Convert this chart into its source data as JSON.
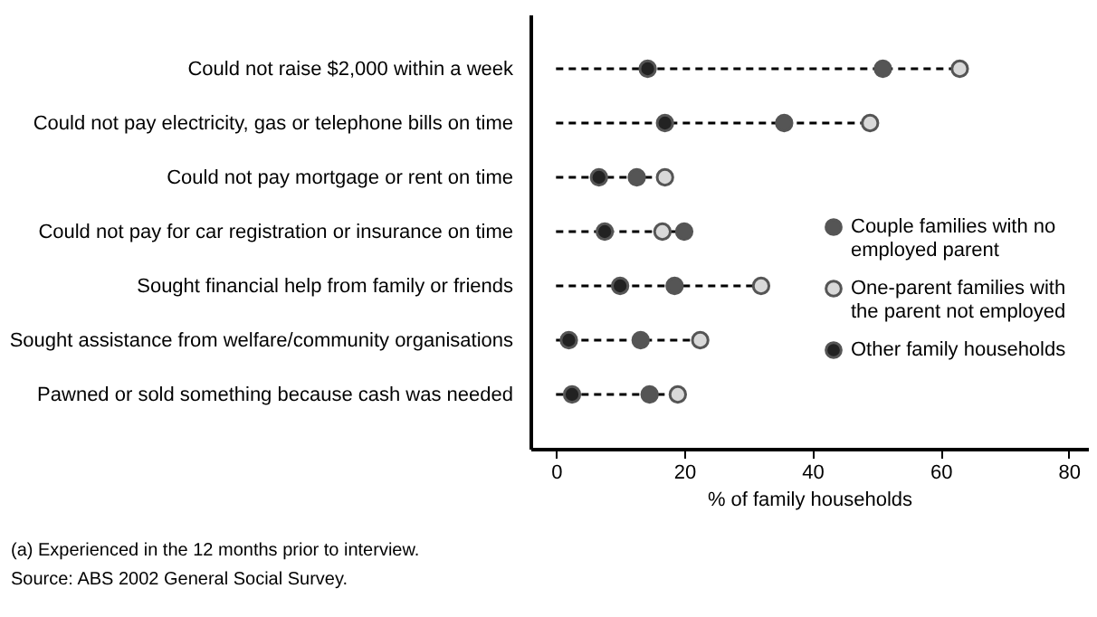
{
  "chart_data": {
    "type": "scatter",
    "xlabel": "% of family households",
    "categories": [
      "Could not raise $2,000 within a week",
      "Could not pay electricity, gas or telephone bills on time",
      "Could not pay mortgage or rent on time",
      "Could not pay for car registration or insurance on time",
      "Sought financial help from family or friends",
      "Sought assistance from welfare/community organisations",
      "Pawned or sold something because cash was needed"
    ],
    "series": [
      {
        "name": "Couple families with no employed parent",
        "color": "#555555",
        "values": [
          51,
          35.6,
          12.6,
          20,
          18.5,
          13.2,
          14.6
        ]
      },
      {
        "name": "One-parent families with the parent not employed",
        "color": "#d9d9d9",
        "values": [
          63,
          49,
          17,
          16.6,
          32,
          22.5,
          19
        ]
      },
      {
        "name": "Other family households",
        "color": "#222222",
        "values": [
          14.3,
          17,
          6.7,
          7.6,
          10,
          2,
          2.5
        ]
      }
    ],
    "orientation": "horizontal",
    "xlim": [
      -4,
      83
    ],
    "xticks": [
      0,
      20,
      40,
      60,
      80
    ],
    "grid": false,
    "legend": "right",
    "marker": "circle",
    "line_style": "dashed",
    "annotations": [
      "(a) Experienced in the 12 months prior to interview.",
      "Source: ABS 2002 General Social Survey."
    ]
  }
}
